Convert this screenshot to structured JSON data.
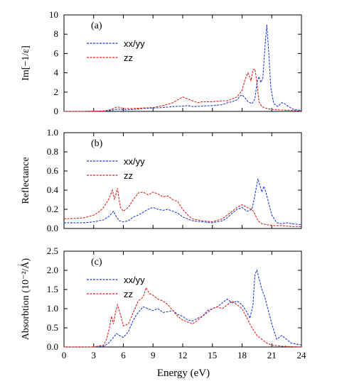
{
  "chart_data": {
    "type": "line",
    "xlabel": "Energy (eV)",
    "xlim": [
      0,
      24
    ],
    "xticks": [
      0,
      3,
      6,
      9,
      12,
      15,
      18,
      21,
      24
    ],
    "series_colors": {
      "xx/yy": "#1f3fd6",
      "zz": "#e0201b"
    },
    "panels": [
      {
        "label": "(a)",
        "ylabel": "Im[−1/ε]",
        "ylim": [
          0,
          10
        ],
        "yticks": [
          "0",
          "2",
          "4",
          "6",
          "8",
          "10"
        ],
        "yticks_values": [
          0,
          2,
          4,
          6,
          8,
          10
        ],
        "legend": [
          "xx/yy",
          "zz"
        ],
        "series": [
          {
            "name": "xx/yy",
            "x": [
              0,
              2,
              4,
              4.8,
              5.2,
              5.5,
              6,
              7,
              8,
              9,
              10,
              11,
              12,
              12.5,
              13,
              14,
              15,
              16,
              16.5,
              17,
              17.5,
              17.8,
              18,
              18.3,
              18.6,
              19,
              19.3,
              19.5,
              19.7,
              19.9,
              20.1,
              20.3,
              20.5,
              20.7,
              20.9,
              21.2,
              21.6,
              22,
              22.3,
              22.7,
              23.2,
              24
            ],
            "values": [
              0,
              0,
              0.02,
              0.1,
              0.2,
              0.25,
              0.15,
              0.2,
              0.3,
              0.35,
              0.4,
              0.5,
              0.55,
              0.6,
              0.5,
              0.55,
              0.6,
              0.7,
              0.9,
              1.0,
              1.2,
              1.6,
              1.7,
              1.4,
              1.0,
              0.8,
              1.3,
              3.0,
              3.6,
              3.0,
              3.5,
              6.5,
              9.0,
              6.0,
              2.5,
              0.8,
              0.5,
              0.9,
              0.8,
              0.5,
              0.2,
              0.1
            ]
          },
          {
            "name": "zz",
            "x": [
              0,
              2,
              4,
              4.8,
              5.2,
              5.5,
              6,
              7,
              8,
              9,
              10,
              11,
              11.5,
              12,
              12.5,
              13,
              13.5,
              14,
              15,
              16,
              16.5,
              17,
              17.5,
              18,
              18.3,
              18.6,
              18.9,
              19.1,
              19.3,
              19.5,
              19.7,
              20,
              20.5,
              21,
              22,
              23,
              24
            ],
            "values": [
              0,
              0,
              0.05,
              0.2,
              0.4,
              0.45,
              0.3,
              0.3,
              0.35,
              0.4,
              0.6,
              0.9,
              1.2,
              1.5,
              1.3,
              1.1,
              0.9,
              1.0,
              1.0,
              1.1,
              1.1,
              1.3,
              1.5,
              2.2,
              3.3,
              4.0,
              3.2,
              4.3,
              4.4,
              3.0,
              1.0,
              0.5,
              0.3,
              0.2,
              0.15,
              0.1,
              0.05
            ]
          }
        ]
      },
      {
        "label": "(b)",
        "ylabel": "Reflectance",
        "ylim": [
          0,
          1
        ],
        "yticks": [
          "0.0",
          "0.2",
          "0.4",
          "0.6",
          "0.8",
          "1.0"
        ],
        "yticks_values": [
          0,
          0.2,
          0.4,
          0.6,
          0.8,
          1.0
        ],
        "legend": [
          "xx/yy",
          "zz"
        ],
        "series": [
          {
            "name": "xx/yy",
            "x": [
              0,
              2,
              3,
              4,
              4.6,
              5,
              5.3,
              5.6,
              6,
              6.5,
              7,
              7.5,
              8,
              8.5,
              9,
              9.5,
              10,
              10.5,
              11,
              11.5,
              12,
              12.5,
              13,
              14,
              15,
              16,
              16.5,
              17,
              17.5,
              18,
              18.5,
              19,
              19.3,
              19.6,
              19.8,
              20,
              20.2,
              20.4,
              20.6,
              21,
              21.5,
              22,
              22.5,
              23,
              24
            ],
            "values": [
              0.06,
              0.06,
              0.07,
              0.09,
              0.13,
              0.18,
              0.12,
              0.08,
              0.07,
              0.08,
              0.12,
              0.14,
              0.17,
              0.2,
              0.22,
              0.2,
              0.19,
              0.2,
              0.18,
              0.16,
              0.12,
              0.1,
              0.08,
              0.07,
              0.06,
              0.08,
              0.11,
              0.16,
              0.2,
              0.22,
              0.18,
              0.2,
              0.35,
              0.52,
              0.45,
              0.38,
              0.44,
              0.38,
              0.3,
              0.14,
              0.06,
              0.05,
              0.06,
              0.05,
              0.04
            ]
          },
          {
            "name": "zz",
            "x": [
              0,
              2,
              3,
              3.5,
              4,
              4.5,
              4.9,
              5.1,
              5.4,
              5.7,
              6,
              6.5,
              7,
              7.5,
              8,
              8.5,
              9,
              9.5,
              10,
              10.5,
              11,
              11.5,
              12,
              12.5,
              13,
              14,
              15,
              16,
              16.5,
              17,
              17.5,
              18,
              18.5,
              19,
              19.3,
              19.6,
              20,
              21,
              22,
              23,
              24
            ],
            "values": [
              0.1,
              0.11,
              0.14,
              0.17,
              0.22,
              0.3,
              0.4,
              0.3,
              0.42,
              0.22,
              0.18,
              0.22,
              0.3,
              0.37,
              0.38,
              0.35,
              0.38,
              0.36,
              0.33,
              0.34,
              0.3,
              0.28,
              0.2,
              0.14,
              0.1,
              0.08,
              0.07,
              0.1,
              0.14,
              0.18,
              0.22,
              0.25,
              0.22,
              0.2,
              0.15,
              0.08,
              0.05,
              0.03,
              0.03,
              0.02,
              0.02
            ]
          }
        ]
      },
      {
        "label": "(c)",
        "ylabel": "Absorbtion (10⁻²/Å)",
        "ylim": [
          0,
          2.5
        ],
        "yticks": [
          "0.0",
          "0.5",
          "1.0",
          "1.5",
          "2.0",
          "2.5"
        ],
        "yticks_values": [
          0,
          0.5,
          1.0,
          1.5,
          2.0,
          2.5
        ],
        "legend": [
          "xx/yy",
          "zz"
        ],
        "series": [
          {
            "name": "xx/yy",
            "x": [
              0,
              3,
              4,
              4.5,
              5,
              5.3,
              5.6,
              6,
              6.5,
              7,
              7.5,
              8,
              8.5,
              9,
              9.5,
              10,
              10.5,
              11,
              11.5,
              12,
              12.5,
              13,
              13.5,
              14,
              14.5,
              15,
              15.5,
              16,
              16.5,
              17,
              17.5,
              18,
              18.5,
              18.8,
              19.1,
              19.3,
              19.5,
              19.7,
              20,
              20.3,
              20.6,
              21,
              21.5,
              22,
              22.5,
              23,
              24
            ],
            "values": [
              0,
              0,
              0.02,
              0.1,
              0.25,
              0.35,
              0.3,
              0.25,
              0.4,
              0.7,
              0.9,
              1.05,
              1.0,
              0.95,
              1.0,
              0.9,
              0.92,
              0.95,
              0.85,
              0.8,
              0.7,
              0.68,
              0.75,
              0.8,
              0.95,
              1.0,
              1.05,
              1.15,
              1.25,
              1.15,
              1.2,
              1.1,
              0.9,
              0.75,
              1.1,
              1.9,
              2.0,
              1.8,
              1.5,
              1.3,
              1.0,
              0.6,
              0.2,
              0.3,
              0.2,
              0.1,
              0.05
            ]
          },
          {
            "name": "zz",
            "x": [
              0,
              3,
              4,
              4.3,
              4.6,
              4.8,
              5,
              5.2,
              5.4,
              5.7,
              6,
              6.5,
              7,
              7.5,
              8,
              8.3,
              8.6,
              9,
              9.5,
              10,
              10.5,
              11,
              11.5,
              12,
              12.5,
              13,
              13.5,
              14,
              14.5,
              15,
              15.5,
              16,
              16.5,
              17,
              17.5,
              18,
              18.5,
              19,
              19.5,
              20,
              20.5,
              21,
              22,
              23,
              24
            ],
            "values": [
              0,
              0,
              0.05,
              0.2,
              0.5,
              0.8,
              0.6,
              0.9,
              1.1,
              0.85,
              0.55,
              0.6,
              0.9,
              1.2,
              1.3,
              1.55,
              1.4,
              1.35,
              1.25,
              1.2,
              1.1,
              0.95,
              0.8,
              0.7,
              0.65,
              0.6,
              0.7,
              0.8,
              0.9,
              1.0,
              1.05,
              1.0,
              1.1,
              1.2,
              1.1,
              1.0,
              0.75,
              0.5,
              0.3,
              0.2,
              0.1,
              0.05,
              0.02,
              0.01,
              0
            ]
          }
        ]
      }
    ]
  }
}
